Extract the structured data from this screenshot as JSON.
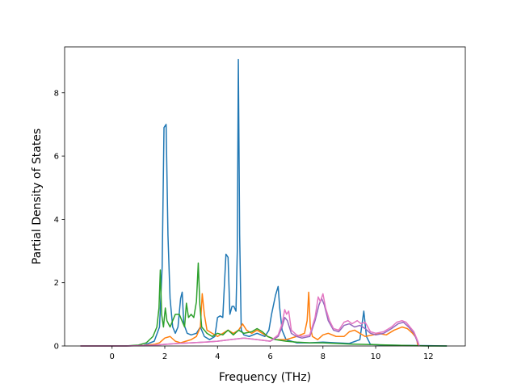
{
  "chart_data": {
    "type": "line",
    "title": "",
    "xlabel": "Frequency (THz)",
    "ylabel": "Partial Density of States",
    "xlim": [
      -1.8,
      13.4
    ],
    "ylim": [
      0,
      9.45
    ],
    "xticks": [
      0,
      2,
      4,
      6,
      8,
      10,
      12
    ],
    "yticks": [
      0,
      2,
      4,
      6,
      8
    ],
    "xtick_labels": [
      "0",
      "2",
      "4",
      "6",
      "8",
      "10",
      "12"
    ],
    "ytick_labels": [
      "0",
      "2",
      "4",
      "6",
      "8"
    ],
    "grid": false,
    "legend": "none",
    "series": [
      {
        "color": "#1f77b4",
        "points": [
          [
            -1.2,
            0
          ],
          [
            0.5,
            0
          ],
          [
            1.2,
            0.02
          ],
          [
            1.6,
            0.15
          ],
          [
            1.8,
            0.6
          ],
          [
            1.9,
            2.5
          ],
          [
            1.97,
            6.9
          ],
          [
            2.05,
            7.0
          ],
          [
            2.12,
            3.5
          ],
          [
            2.2,
            1.5
          ],
          [
            2.3,
            0.6
          ],
          [
            2.4,
            0.4
          ],
          [
            2.5,
            0.6
          ],
          [
            2.6,
            1.5
          ],
          [
            2.66,
            1.7
          ],
          [
            2.72,
            0.7
          ],
          [
            2.85,
            0.4
          ],
          [
            3.0,
            0.35
          ],
          [
            3.2,
            0.4
          ],
          [
            3.35,
            0.6
          ],
          [
            3.5,
            0.3
          ],
          [
            3.7,
            0.2
          ],
          [
            3.9,
            0.3
          ],
          [
            4.0,
            0.9
          ],
          [
            4.1,
            0.95
          ],
          [
            4.2,
            0.9
          ],
          [
            4.32,
            2.9
          ],
          [
            4.4,
            2.8
          ],
          [
            4.47,
            1.0
          ],
          [
            4.55,
            1.25
          ],
          [
            4.62,
            1.25
          ],
          [
            4.7,
            1.1
          ],
          [
            4.75,
            3.0
          ],
          [
            4.79,
            9.05
          ],
          [
            4.84,
            3.5
          ],
          [
            4.9,
            0.5
          ],
          [
            5.0,
            0.35
          ],
          [
            5.2,
            0.3
          ],
          [
            5.5,
            0.4
          ],
          [
            5.8,
            0.3
          ],
          [
            5.95,
            0.5
          ],
          [
            6.05,
            1.0
          ],
          [
            6.2,
            1.6
          ],
          [
            6.3,
            1.88
          ],
          [
            6.36,
            1.2
          ],
          [
            6.45,
            0.5
          ],
          [
            6.6,
            0.2
          ],
          [
            6.8,
            0.15
          ],
          [
            7.0,
            0.1
          ],
          [
            7.5,
            0.1
          ],
          [
            8.0,
            0.12
          ],
          [
            8.5,
            0.1
          ],
          [
            9.0,
            0.08
          ],
          [
            9.4,
            0.2
          ],
          [
            9.55,
            1.1
          ],
          [
            9.65,
            0.3
          ],
          [
            9.8,
            0.05
          ],
          [
            10.2,
            0.03
          ],
          [
            11.0,
            0.02
          ],
          [
            12.0,
            0.01
          ],
          [
            12.7,
            0
          ]
        ]
      },
      {
        "color": "#ff7f0e",
        "points": [
          [
            -1.2,
            0
          ],
          [
            0.5,
            0
          ],
          [
            1.2,
            0.02
          ],
          [
            1.6,
            0.05
          ],
          [
            1.8,
            0.1
          ],
          [
            2.0,
            0.25
          ],
          [
            2.2,
            0.3
          ],
          [
            2.4,
            0.15
          ],
          [
            2.6,
            0.1
          ],
          [
            2.8,
            0.15
          ],
          [
            3.0,
            0.2
          ],
          [
            3.2,
            0.3
          ],
          [
            3.35,
            0.6
          ],
          [
            3.42,
            1.65
          ],
          [
            3.5,
            1.0
          ],
          [
            3.6,
            0.5
          ],
          [
            3.8,
            0.4
          ],
          [
            4.0,
            0.3
          ],
          [
            4.2,
            0.4
          ],
          [
            4.4,
            0.5
          ],
          [
            4.6,
            0.4
          ],
          [
            4.8,
            0.5
          ],
          [
            4.95,
            0.7
          ],
          [
            5.1,
            0.5
          ],
          [
            5.3,
            0.4
          ],
          [
            5.5,
            0.5
          ],
          [
            5.7,
            0.4
          ],
          [
            5.9,
            0.3
          ],
          [
            6.2,
            0.2
          ],
          [
            6.6,
            0.2
          ],
          [
            7.0,
            0.3
          ],
          [
            7.3,
            0.4
          ],
          [
            7.4,
            0.8
          ],
          [
            7.46,
            1.7
          ],
          [
            7.52,
            0.6
          ],
          [
            7.6,
            0.3
          ],
          [
            7.8,
            0.2
          ],
          [
            8.0,
            0.35
          ],
          [
            8.2,
            0.4
          ],
          [
            8.5,
            0.3
          ],
          [
            8.8,
            0.3
          ],
          [
            9.0,
            0.45
          ],
          [
            9.2,
            0.5
          ],
          [
            9.4,
            0.4
          ],
          [
            9.6,
            0.3
          ],
          [
            9.9,
            0.35
          ],
          [
            10.1,
            0.4
          ],
          [
            10.4,
            0.35
          ],
          [
            10.7,
            0.5
          ],
          [
            11.0,
            0.6
          ],
          [
            11.2,
            0.55
          ],
          [
            11.4,
            0.4
          ],
          [
            11.55,
            0.25
          ],
          [
            11.6,
            0
          ]
        ]
      },
      {
        "color": "#2ca02c",
        "points": [
          [
            -1.2,
            0
          ],
          [
            0.5,
            0
          ],
          [
            1.0,
            0.03
          ],
          [
            1.3,
            0.1
          ],
          [
            1.55,
            0.3
          ],
          [
            1.7,
            0.6
          ],
          [
            1.78,
            1.2
          ],
          [
            1.83,
            2.4
          ],
          [
            1.88,
            1.0
          ],
          [
            1.95,
            0.6
          ],
          [
            2.02,
            1.2
          ],
          [
            2.08,
            0.8
          ],
          [
            2.2,
            0.6
          ],
          [
            2.3,
            0.8
          ],
          [
            2.4,
            1.0
          ],
          [
            2.55,
            1.0
          ],
          [
            2.65,
            0.8
          ],
          [
            2.75,
            0.6
          ],
          [
            2.82,
            1.35
          ],
          [
            2.9,
            0.9
          ],
          [
            3.0,
            1.0
          ],
          [
            3.1,
            0.9
          ],
          [
            3.2,
            1.4
          ],
          [
            3.27,
            2.62
          ],
          [
            3.33,
            1.3
          ],
          [
            3.4,
            0.6
          ],
          [
            3.6,
            0.4
          ],
          [
            3.8,
            0.3
          ],
          [
            4.0,
            0.4
          ],
          [
            4.2,
            0.35
          ],
          [
            4.4,
            0.5
          ],
          [
            4.6,
            0.35
          ],
          [
            4.8,
            0.5
          ],
          [
            5.0,
            0.4
          ],
          [
            5.3,
            0.45
          ],
          [
            5.5,
            0.55
          ],
          [
            5.7,
            0.45
          ],
          [
            5.9,
            0.3
          ],
          [
            6.2,
            0.2
          ],
          [
            6.6,
            0.15
          ],
          [
            7.0,
            0.12
          ],
          [
            7.5,
            0.1
          ],
          [
            8.0,
            0.1
          ],
          [
            8.5,
            0.08
          ],
          [
            9.0,
            0.06
          ],
          [
            9.5,
            0.05
          ],
          [
            10.0,
            0.04
          ],
          [
            10.5,
            0.03
          ],
          [
            11.0,
            0.02
          ],
          [
            11.5,
            0.01
          ],
          [
            12.0,
            0
          ],
          [
            12.7,
            0
          ]
        ]
      },
      {
        "color": "#9467bd",
        "points": [
          [
            -1.2,
            0
          ],
          [
            0.5,
            0
          ],
          [
            1.5,
            0.02
          ],
          [
            2.0,
            0.05
          ],
          [
            2.5,
            0.08
          ],
          [
            3.0,
            0.1
          ],
          [
            3.5,
            0.12
          ],
          [
            4.0,
            0.15
          ],
          [
            4.5,
            0.2
          ],
          [
            5.0,
            0.25
          ],
          [
            5.5,
            0.2
          ],
          [
            6.0,
            0.15
          ],
          [
            6.3,
            0.3
          ],
          [
            6.45,
            0.6
          ],
          [
            6.55,
            0.9
          ],
          [
            6.65,
            0.8
          ],
          [
            6.8,
            0.4
          ],
          [
            7.0,
            0.3
          ],
          [
            7.2,
            0.25
          ],
          [
            7.5,
            0.3
          ],
          [
            7.7,
            0.8
          ],
          [
            7.85,
            1.3
          ],
          [
            7.95,
            1.5
          ],
          [
            8.05,
            1.3
          ],
          [
            8.2,
            0.8
          ],
          [
            8.4,
            0.5
          ],
          [
            8.6,
            0.45
          ],
          [
            8.8,
            0.65
          ],
          [
            9.0,
            0.7
          ],
          [
            9.2,
            0.6
          ],
          [
            9.4,
            0.65
          ],
          [
            9.6,
            0.55
          ],
          [
            9.8,
            0.4
          ],
          [
            10.0,
            0.35
          ],
          [
            10.3,
            0.4
          ],
          [
            10.6,
            0.55
          ],
          [
            10.85,
            0.7
          ],
          [
            11.05,
            0.75
          ],
          [
            11.25,
            0.6
          ],
          [
            11.45,
            0.4
          ],
          [
            11.6,
            0.1
          ],
          [
            11.65,
            0
          ]
        ]
      },
      {
        "color": "#e377c2",
        "points": [
          [
            -1.2,
            0
          ],
          [
            0.5,
            0
          ],
          [
            1.5,
            0.02
          ],
          [
            2.0,
            0.05
          ],
          [
            2.5,
            0.08
          ],
          [
            3.0,
            0.1
          ],
          [
            3.5,
            0.12
          ],
          [
            4.0,
            0.15
          ],
          [
            4.5,
            0.2
          ],
          [
            5.0,
            0.25
          ],
          [
            5.5,
            0.2
          ],
          [
            6.0,
            0.15
          ],
          [
            6.3,
            0.35
          ],
          [
            6.45,
            0.7
          ],
          [
            6.55,
            1.15
          ],
          [
            6.62,
            1.0
          ],
          [
            6.7,
            1.1
          ],
          [
            6.8,
            0.5
          ],
          [
            7.0,
            0.35
          ],
          [
            7.2,
            0.3
          ],
          [
            7.5,
            0.35
          ],
          [
            7.7,
            0.9
          ],
          [
            7.82,
            1.55
          ],
          [
            7.9,
            1.4
          ],
          [
            8.0,
            1.65
          ],
          [
            8.1,
            1.2
          ],
          [
            8.25,
            0.8
          ],
          [
            8.4,
            0.55
          ],
          [
            8.6,
            0.5
          ],
          [
            8.8,
            0.75
          ],
          [
            8.95,
            0.8
          ],
          [
            9.1,
            0.7
          ],
          [
            9.3,
            0.8
          ],
          [
            9.45,
            0.7
          ],
          [
            9.6,
            0.75
          ],
          [
            9.8,
            0.45
          ],
          [
            10.0,
            0.4
          ],
          [
            10.3,
            0.45
          ],
          [
            10.6,
            0.6
          ],
          [
            10.8,
            0.75
          ],
          [
            11.0,
            0.8
          ],
          [
            11.15,
            0.75
          ],
          [
            11.3,
            0.6
          ],
          [
            11.45,
            0.45
          ],
          [
            11.6,
            0.15
          ],
          [
            11.65,
            0
          ]
        ]
      }
    ]
  }
}
